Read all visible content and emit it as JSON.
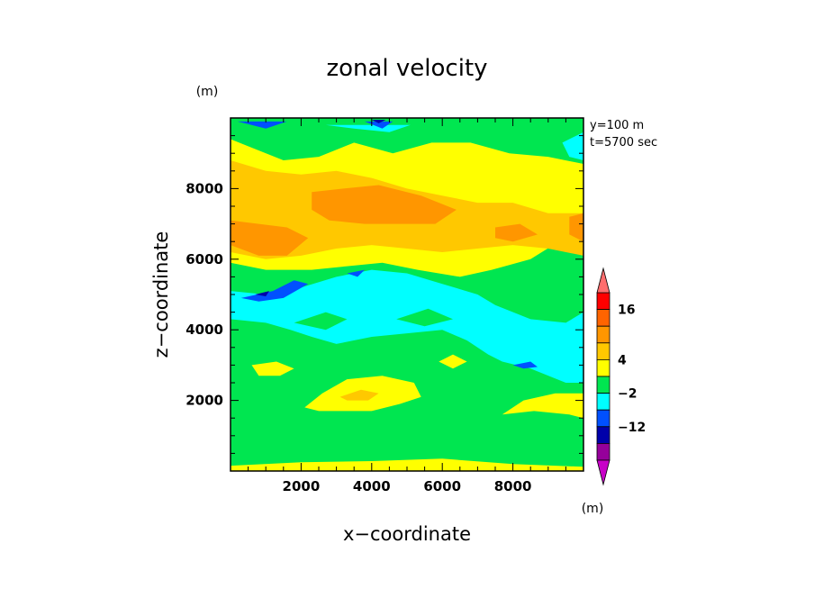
{
  "chart_data": {
    "type": "heatmap",
    "title": "zonal velocity",
    "xlabel": "x−coordinate",
    "ylabel": "z−coordinate",
    "y_unit": "(m)",
    "colorbar_unit": "(m)",
    "info_lines": [
      "y=100 m",
      "t=5700 sec"
    ],
    "xlim": [
      0,
      10000
    ],
    "ylim": [
      0,
      10000
    ],
    "x_ticks": [
      2000,
      4000,
      6000,
      8000
    ],
    "x_tick_labels": [
      "2000",
      "4000",
      "6000",
      "8000"
    ],
    "y_ticks": [
      2000,
      4000,
      6000,
      8000
    ],
    "y_tick_labels": [
      "2000",
      "4000",
      "6000",
      "8000"
    ],
    "levels": [
      {
        "color": "#c800c8"
      },
      {
        "color": "#96009b"
      },
      {
        "color": "#0000aa"
      },
      {
        "color": "#0050ff"
      },
      {
        "color": "#00ffff"
      },
      {
        "color": "#00e650"
      },
      {
        "color": "#ffff00"
      },
      {
        "color": "#ffc800"
      },
      {
        "color": "#ff9600"
      },
      {
        "color": "#ff6400"
      },
      {
        "color": "#ff0000"
      },
      {
        "color": "#ff6e6e"
      }
    ],
    "colorbar_labels": [
      "16",
      "4",
      "−2",
      "−12"
    ],
    "contour_regions": [
      {
        "level": 5,
        "points": [
          [
            0,
            0
          ],
          [
            10000,
            0
          ],
          [
            10000,
            10000
          ],
          [
            0,
            10000
          ]
        ]
      },
      {
        "level": 6,
        "points": [
          [
            0,
            0
          ],
          [
            10000,
            0
          ],
          [
            10000,
            120
          ],
          [
            8000,
            200
          ],
          [
            6000,
            350
          ],
          [
            4000,
            280
          ],
          [
            2000,
            250
          ],
          [
            0,
            150
          ]
        ]
      },
      {
        "level": 6,
        "points": [
          [
            2100,
            1800
          ],
          [
            2600,
            2200
          ],
          [
            3300,
            2600
          ],
          [
            4300,
            2700
          ],
          [
            5200,
            2500
          ],
          [
            5400,
            2100
          ],
          [
            4800,
            1900
          ],
          [
            4000,
            1700
          ],
          [
            3100,
            1700
          ],
          [
            2500,
            1700
          ]
        ]
      },
      {
        "level": 6,
        "points": [
          [
            7700,
            1600
          ],
          [
            8600,
            1700
          ],
          [
            9600,
            1600
          ],
          [
            10000,
            1500
          ],
          [
            10000,
            2200
          ],
          [
            9200,
            2200
          ],
          [
            8300,
            2000
          ]
        ]
      },
      {
        "level": 6,
        "points": [
          [
            600,
            3000
          ],
          [
            1300,
            3100
          ],
          [
            1800,
            2900
          ],
          [
            1400,
            2700
          ],
          [
            800,
            2700
          ]
        ]
      },
      {
        "level": 6,
        "points": [
          [
            5900,
            3100
          ],
          [
            6300,
            3300
          ],
          [
            6700,
            3100
          ],
          [
            6300,
            2900
          ]
        ]
      },
      {
        "level": 6,
        "points": [
          [
            0,
            9400
          ],
          [
            500,
            9200
          ],
          [
            1500,
            8800
          ],
          [
            2500,
            8900
          ],
          [
            3500,
            9300
          ],
          [
            4600,
            9000
          ],
          [
            5700,
            9300
          ],
          [
            6800,
            9300
          ],
          [
            7900,
            9000
          ],
          [
            9000,
            8900
          ],
          [
            10000,
            8700
          ],
          [
            10000,
            6900
          ],
          [
            9300,
            6500
          ],
          [
            8500,
            6000
          ],
          [
            7400,
            5700
          ],
          [
            6500,
            5500
          ],
          [
            5300,
            5700
          ],
          [
            4300,
            5900
          ],
          [
            3300,
            5800
          ],
          [
            2300,
            5700
          ],
          [
            1000,
            5700
          ],
          [
            0,
            5900
          ]
        ]
      },
      {
        "level": 7,
        "points": [
          [
            0,
            8800
          ],
          [
            1000,
            8500
          ],
          [
            2000,
            8400
          ],
          [
            3000,
            8500
          ],
          [
            4000,
            8300
          ],
          [
            5000,
            8000
          ],
          [
            6000,
            7800
          ],
          [
            7000,
            7600
          ],
          [
            8000,
            7600
          ],
          [
            9000,
            7300
          ],
          [
            10000,
            7300
          ],
          [
            10000,
            6100
          ],
          [
            9000,
            6300
          ],
          [
            8000,
            6400
          ],
          [
            7000,
            6300
          ],
          [
            6000,
            6200
          ],
          [
            5000,
            6300
          ],
          [
            4000,
            6400
          ],
          [
            3000,
            6300
          ],
          [
            2000,
            6100
          ],
          [
            1000,
            6000
          ],
          [
            0,
            6200
          ]
        ]
      },
      {
        "level": 7,
        "points": [
          [
            3100,
            2100
          ],
          [
            3700,
            2300
          ],
          [
            4200,
            2200
          ],
          [
            3900,
            2000
          ],
          [
            3300,
            2000
          ]
        ]
      },
      {
        "level": 8,
        "points": [
          [
            0,
            7100
          ],
          [
            800,
            7000
          ],
          [
            1600,
            6900
          ],
          [
            2200,
            6600
          ],
          [
            1600,
            6100
          ],
          [
            800,
            6100
          ],
          [
            0,
            6400
          ]
        ]
      },
      {
        "level": 8,
        "points": [
          [
            2300,
            7900
          ],
          [
            3200,
            8000
          ],
          [
            4200,
            8100
          ],
          [
            5400,
            7800
          ],
          [
            6400,
            7400
          ],
          [
            5800,
            7000
          ],
          [
            4800,
            7000
          ],
          [
            3800,
            7000
          ],
          [
            2800,
            7100
          ],
          [
            2300,
            7400
          ]
        ]
      },
      {
        "level": 8,
        "points": [
          [
            9600,
            7200
          ],
          [
            10000,
            7300
          ],
          [
            10000,
            6500
          ],
          [
            9600,
            6700
          ]
        ]
      },
      {
        "level": 8,
        "points": [
          [
            7500,
            6900
          ],
          [
            8200,
            7000
          ],
          [
            8700,
            6700
          ],
          [
            8000,
            6500
          ],
          [
            7500,
            6600
          ]
        ]
      },
      {
        "level": 4,
        "points": [
          [
            0,
            5100
          ],
          [
            1000,
            5000
          ],
          [
            2000,
            5200
          ],
          [
            3000,
            5500
          ],
          [
            4000,
            5700
          ],
          [
            5000,
            5600
          ],
          [
            6000,
            5300
          ],
          [
            7000,
            5000
          ],
          [
            7500,
            4700
          ],
          [
            8500,
            4300
          ],
          [
            9500,
            4200
          ],
          [
            10000,
            4500
          ],
          [
            10000,
            2500
          ],
          [
            9500,
            2500
          ],
          [
            8500,
            2900
          ],
          [
            7700,
            3100
          ],
          [
            7300,
            3300
          ],
          [
            6700,
            3700
          ],
          [
            6000,
            4000
          ],
          [
            5000,
            3900
          ],
          [
            4000,
            3800
          ],
          [
            3000,
            3600
          ],
          [
            2300,
            3800
          ],
          [
            1700,
            4000
          ],
          [
            1000,
            4200
          ],
          [
            0,
            4300
          ]
        ]
      },
      {
        "level": 5,
        "points": [
          [
            1800,
            4200
          ],
          [
            2700,
            4000
          ],
          [
            3300,
            4300
          ],
          [
            2700,
            4500
          ]
        ]
      },
      {
        "level": 5,
        "points": [
          [
            4700,
            4300
          ],
          [
            5500,
            4100
          ],
          [
            6300,
            4300
          ],
          [
            5600,
            4600
          ]
        ]
      },
      {
        "level": 4,
        "points": [
          [
            9400,
            9300
          ],
          [
            10000,
            9600
          ],
          [
            10000,
            8800
          ],
          [
            9600,
            8900
          ]
        ]
      },
      {
        "level": 4,
        "points": [
          [
            2700,
            9800
          ],
          [
            3500,
            9700
          ],
          [
            4500,
            9600
          ],
          [
            5100,
            9800
          ]
        ]
      },
      {
        "level": 3,
        "points": [
          [
            300,
            4900
          ],
          [
            1200,
            5100
          ],
          [
            1800,
            5400
          ],
          [
            2200,
            5300
          ],
          [
            1500,
            4900
          ],
          [
            800,
            4800
          ]
        ]
      },
      {
        "level": 3,
        "points": [
          [
            3300,
            5600
          ],
          [
            3800,
            5700
          ],
          [
            3600,
            5500
          ]
        ]
      },
      {
        "level": 3,
        "points": [
          [
            8000,
            3000
          ],
          [
            8500,
            3100
          ],
          [
            8700,
            2950
          ],
          [
            8300,
            2900
          ]
        ]
      },
      {
        "level": 3,
        "points": [
          [
            3800,
            9900
          ],
          [
            4600,
            9900
          ],
          [
            4300,
            9700
          ]
        ]
      },
      {
        "level": 3,
        "points": [
          [
            200,
            9900
          ],
          [
            1600,
            9900
          ],
          [
            1000,
            9700
          ]
        ]
      },
      {
        "level": 2,
        "points": [
          [
            4000,
            9950
          ],
          [
            4400,
            9950
          ],
          [
            4200,
            9850
          ]
        ]
      },
      {
        "level": 2,
        "points": [
          [
            700,
            5000
          ],
          [
            1100,
            5100
          ],
          [
            1000,
            4950
          ]
        ]
      }
    ]
  }
}
